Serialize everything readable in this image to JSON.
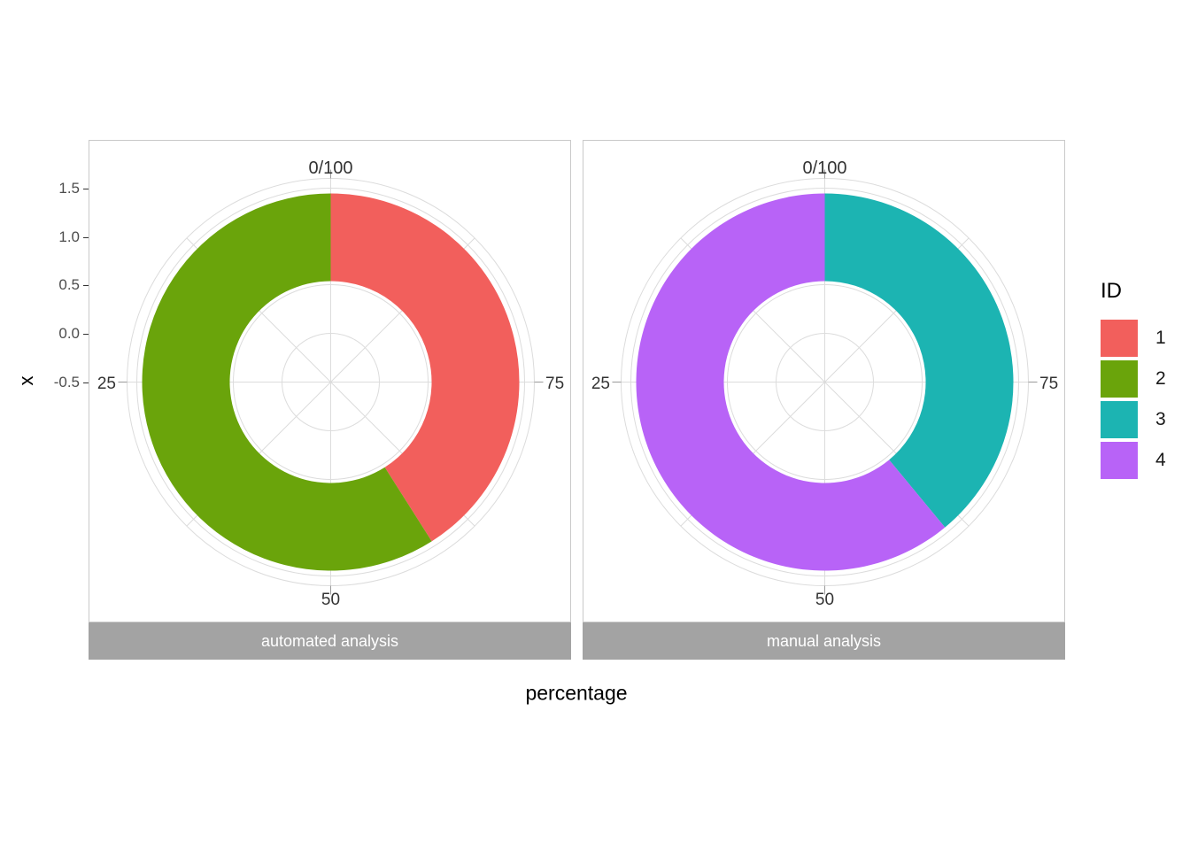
{
  "figure": {
    "background": "#ffffff",
    "y_axis": {
      "title": "x",
      "tick_labels": [
        "1.5",
        "1.0",
        "0.5",
        "0.0",
        "-0.5"
      ]
    },
    "x_axis": {
      "title": "percentage"
    },
    "legend": {
      "title": "ID",
      "items": [
        {
          "label": "1",
          "color": "#f25f5c"
        },
        {
          "label": "2",
          "color": "#6aa40b"
        },
        {
          "label": "3",
          "color": "#1cb4b2"
        },
        {
          "label": "4",
          "color": "#b863f7"
        }
      ]
    },
    "grid_color": "#dcdcdc",
    "panel_border_color": "#c9c9c9",
    "strip_background": "#a3a3a3",
    "strip_text_color": "#ffffff"
  },
  "chart_data": {
    "type": "pie",
    "subtype": "faceted_donut",
    "coord": "polar",
    "slice_direction": "clockwise_from_top",
    "theta_axis": {
      "tick_labels": [
        {
          "label": "0/100",
          "position": "top"
        },
        {
          "label": "25",
          "position": "left"
        },
        {
          "label": "50",
          "position": "bottom"
        },
        {
          "label": "75",
          "position": "right"
        }
      ],
      "range": [
        0,
        100
      ],
      "label_direction": "counterclockwise"
    },
    "radial_axis": {
      "title": "x",
      "ticks": [
        1.5,
        1.0,
        0.5,
        0.0,
        -0.5
      ],
      "ring_extent": [
        0.5,
        1.5
      ],
      "grid": true
    },
    "legend_title": "ID",
    "facets": [
      {
        "title": "automated analysis",
        "slices": [
          {
            "id": "1",
            "value": 41,
            "color": "#f25f5c"
          },
          {
            "id": "2",
            "value": 59,
            "color": "#6aa40b"
          }
        ]
      },
      {
        "title": "manual analysis",
        "slices": [
          {
            "id": "3",
            "value": 39,
            "color": "#1cb4b2"
          },
          {
            "id": "4",
            "value": 61,
            "color": "#b863f7"
          }
        ]
      }
    ]
  }
}
